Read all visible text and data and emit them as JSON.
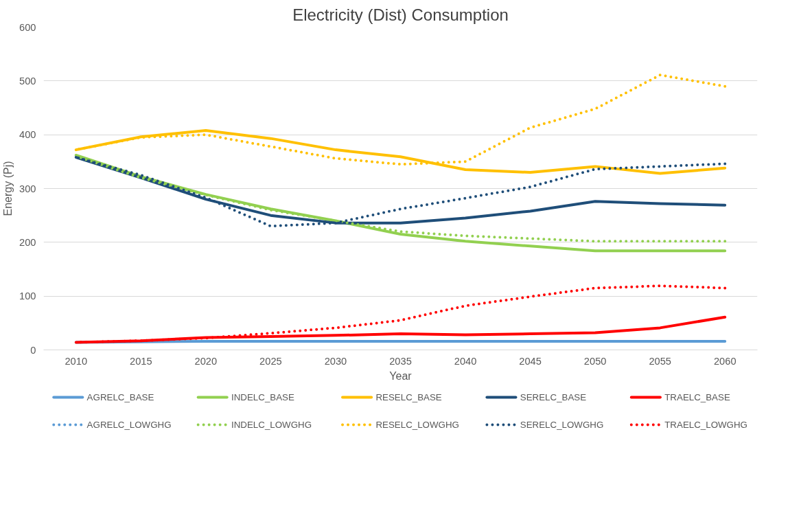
{
  "chart_data": {
    "type": "line",
    "title": "Electricity (Dist) Consumption",
    "xlabel": "Year",
    "ylabel": "Energy (Pj)",
    "x": [
      2010,
      2015,
      2020,
      2025,
      2030,
      2035,
      2040,
      2045,
      2050,
      2055,
      2060
    ],
    "xlim": [
      2007.5,
      2062.5
    ],
    "xticks": [
      2010,
      2015,
      2020,
      2025,
      2030,
      2035,
      2040,
      2045,
      2050,
      2055,
      2060
    ],
    "ylim": [
      0,
      600
    ],
    "yticks": [
      0,
      100,
      200,
      300,
      400,
      500,
      600
    ],
    "grid": "y",
    "legend": "bottom",
    "marker": "none",
    "series": [
      {
        "name": "AGRELC_BASE",
        "color": "#5b9bd5",
        "line_style": "solid",
        "values": [
          14,
          15,
          16,
          16,
          16,
          16,
          16,
          16,
          16,
          16,
          16
        ]
      },
      {
        "name": "INDELC_BASE",
        "color": "#92d050",
        "line_style": "solid",
        "values": [
          362,
          322,
          289,
          262,
          240,
          215,
          202,
          193,
          184,
          184,
          184
        ]
      },
      {
        "name": "RESELC_BASE",
        "color": "#ffc000",
        "line_style": "solid",
        "values": [
          372,
          396,
          408,
          393,
          372,
          359,
          335,
          330,
          341,
          328,
          338
        ]
      },
      {
        "name": "SERELC_BASE",
        "color": "#1f4e79",
        "line_style": "solid",
        "values": [
          358,
          320,
          280,
          250,
          236,
          236,
          245,
          258,
          276,
          272,
          269
        ]
      },
      {
        "name": "TRAELC_BASE",
        "color": "#ff0000",
        "line_style": "solid",
        "values": [
          14,
          17,
          23,
          25,
          27,
          30,
          28,
          30,
          32,
          41,
          61
        ]
      },
      {
        "name": "AGRELC_LOWGHG",
        "color": "#5b9bd5",
        "line_style": "dotted",
        "values": [
          null,
          null,
          null,
          null,
          null,
          null,
          null,
          null,
          null,
          null,
          null
        ]
      },
      {
        "name": "INDELC_LOWGHG",
        "color": "#92d050",
        "line_style": "dotted",
        "values": [
          360,
          320,
          288,
          260,
          240,
          220,
          212,
          207,
          202,
          202,
          202
        ]
      },
      {
        "name": "RESELC_LOWGHG",
        "color": "#ffc000",
        "line_style": "dotted",
        "values": [
          372,
          395,
          400,
          378,
          356,
          345,
          350,
          413,
          448,
          511,
          490
        ]
      },
      {
        "name": "SERELC_LOWGHG",
        "color": "#1f4e79",
        "line_style": "dotted",
        "values": [
          358,
          325,
          283,
          230,
          236,
          262,
          282,
          303,
          336,
          341,
          346
        ]
      },
      {
        "name": "TRAELC_LOWGHG",
        "color": "#ff0000",
        "line_style": "dotted",
        "values": [
          14,
          17,
          22,
          31,
          41,
          55,
          82,
          99,
          115,
          119,
          115
        ]
      }
    ]
  }
}
